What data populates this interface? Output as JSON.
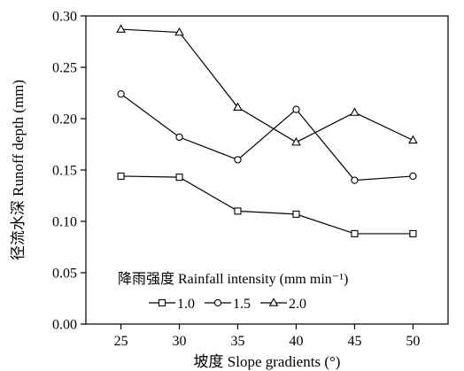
{
  "chart_data": {
    "type": "line",
    "xlabel": "坡度 Slope gradients (°)",
    "ylabel": "径流水深 Runoff depth (mm)",
    "x": [
      25,
      30,
      35,
      40,
      45,
      50
    ],
    "xlim": [
      22,
      53
    ],
    "ylim": [
      0.0,
      0.3
    ],
    "x_ticks": [
      "25",
      "30",
      "35",
      "40",
      "45",
      "50"
    ],
    "y_ticks": [
      "0.00",
      "0.05",
      "0.10",
      "0.15",
      "0.20",
      "0.25",
      "0.30"
    ],
    "grid": false,
    "legend": {
      "title": "降雨强度 Rainfall intensity (mm min⁻¹)",
      "placement": "bottom-left"
    },
    "series": [
      {
        "name": "1.0",
        "marker": "square",
        "values": [
          0.144,
          0.143,
          0.11,
          0.107,
          0.088,
          0.088
        ]
      },
      {
        "name": "1.5",
        "marker": "circle",
        "values": [
          0.224,
          0.182,
          0.16,
          0.209,
          0.14,
          0.144
        ]
      },
      {
        "name": "2.0",
        "marker": "triangle",
        "values": [
          0.287,
          0.284,
          0.211,
          0.177,
          0.206,
          0.179
        ]
      }
    ]
  }
}
